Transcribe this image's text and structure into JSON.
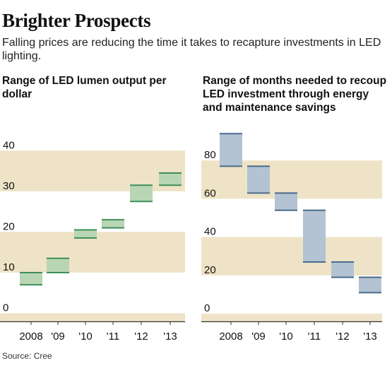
{
  "headline": "Brighter Prospects",
  "dek": "Falling prices are reducing the time it takes to recapture investments in LED lighting.",
  "source": "Source: Cree",
  "colors": {
    "band": "#eee3c6",
    "lumen_fill": "#b9d6b4",
    "lumen_line": "#3f8f5a",
    "months_fill": "#b3c3d3",
    "months_line": "#4a6a8c",
    "axis": "#333333"
  },
  "chart_data": [
    {
      "type": "range-bar",
      "title": "Range of LED lumen output per dollar",
      "categories": [
        "2008",
        "'09",
        "'10",
        "'11",
        "'12",
        "'13"
      ],
      "series": [
        {
          "low": [
            7,
            10,
            18.5,
            21,
            27.5,
            31.5
          ],
          "high": [
            10,
            13.5,
            20.5,
            23,
            31.5,
            34.5
          ]
        }
      ],
      "ylim": [
        -2,
        47
      ],
      "yticks": [
        0,
        10,
        20,
        30,
        40
      ],
      "ytick_labels": [
        "0",
        "10",
        "20",
        "30",
        "40"
      ],
      "bands": [
        [
          -2,
          0
        ],
        [
          10,
          20
        ],
        [
          30,
          40
        ]
      ]
    },
    {
      "type": "range-bar",
      "title": "Range of months needed to recoup LED investment through energy and maintenance savings",
      "categories": [
        "2008",
        "'09",
        "'10",
        "'11",
        "'12",
        "'13"
      ],
      "series": [
        {
          "low": [
            77,
            63,
            54,
            27,
            19,
            11
          ],
          "high": [
            94,
            77,
            63,
            54,
            27,
            19
          ]
        }
      ],
      "ylim": [
        -4,
        100
      ],
      "yticks": [
        0,
        20,
        40,
        60,
        80
      ],
      "ytick_labels": [
        "0",
        "20",
        "40",
        "60",
        "80"
      ],
      "bands": [
        [
          -4,
          0
        ],
        [
          20,
          40
        ],
        [
          60,
          80
        ]
      ]
    }
  ]
}
